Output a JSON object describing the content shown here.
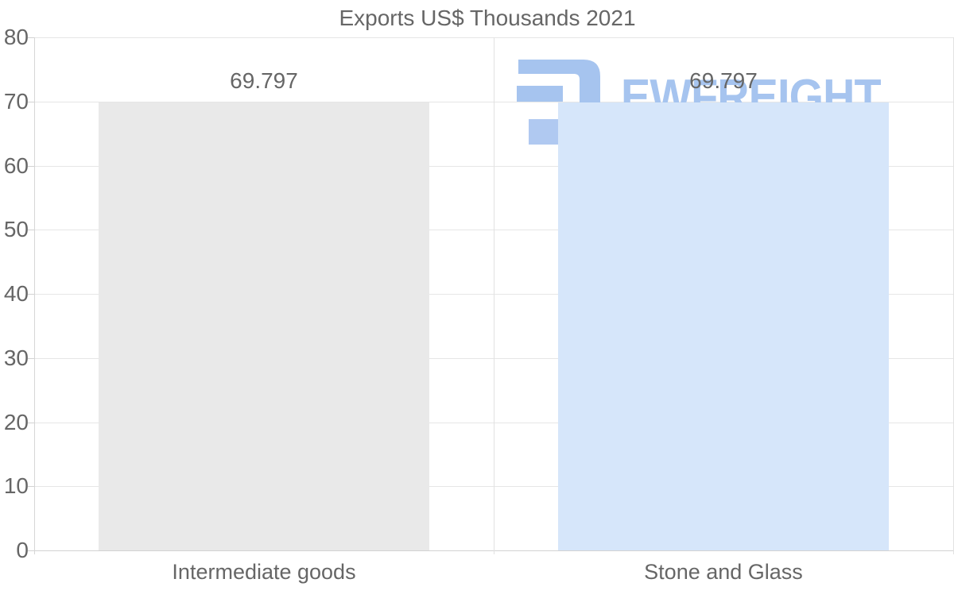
{
  "chart_data": {
    "type": "bar",
    "title": "Exports US$ Thousands 2021",
    "categories": [
      "Intermediate goods",
      "Stone and Glass"
    ],
    "values": [
      69.797,
      69.797
    ],
    "value_labels": [
      "69.797",
      "69.797"
    ],
    "series": [
      {
        "name": "Intermediate goods",
        "value": 69.797
      },
      {
        "name": "Stone and Glass",
        "value": 69.797
      }
    ],
    "bar_colors": [
      "#e9e9e9",
      "#d6e6fa"
    ],
    "xlabel": "",
    "ylabel": "",
    "ylim": [
      0,
      80
    ],
    "yticks": [
      0,
      10,
      20,
      30,
      40,
      50,
      60,
      70,
      80
    ],
    "ytick_labels": [
      "0",
      "10",
      "20",
      "30",
      "40",
      "50",
      "60",
      "70",
      "80"
    ],
    "grid": true,
    "legend": false
  },
  "watermark": {
    "text": "EWFREIGHT",
    "icon": "ewfreight-logo-icon",
    "color": "#a6c4ef"
  },
  "colors": {
    "background": "#ffffff",
    "text": "#666666",
    "gridline": "#e6e6e6",
    "axis_line": "#d6d6d6",
    "bar_gray": "#e9e9e9",
    "bar_blue": "#d6e6fa",
    "watermark_blue": "#a6c4ef"
  }
}
